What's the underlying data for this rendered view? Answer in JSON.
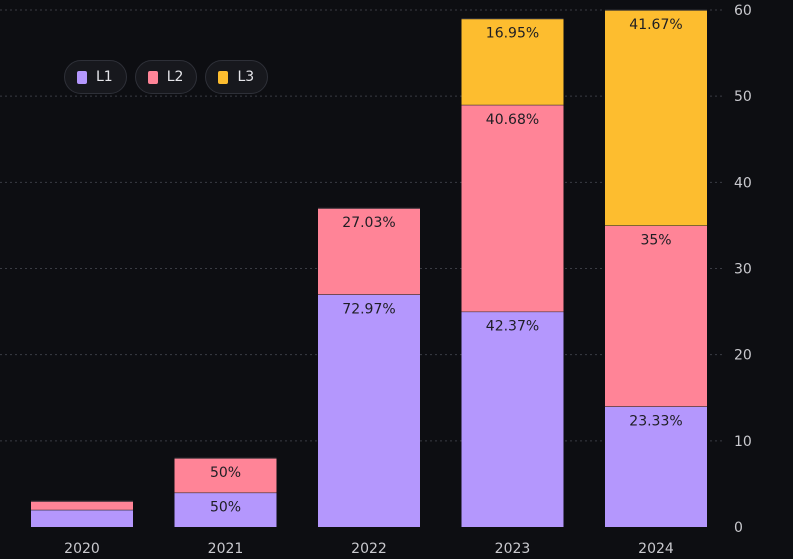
{
  "chart_data": {
    "type": "bar",
    "stacked": true,
    "categories": [
      "2020",
      "2021",
      "2022",
      "2023",
      "2024"
    ],
    "series": [
      {
        "name": "L1",
        "color": "#b497fd",
        "values": [
          2,
          4,
          27,
          25,
          14
        ],
        "labels": [
          "",
          "50%",
          "72.97%",
          "42.37%",
          "23.33%"
        ]
      },
      {
        "name": "L2",
        "color": "#ff8497",
        "values": [
          1,
          4,
          10,
          24,
          21
        ],
        "labels": [
          "",
          "50%",
          "27.03%",
          "40.68%",
          "35%"
        ]
      },
      {
        "name": "L3",
        "color": "#fdbd2f",
        "values": [
          0,
          0,
          0,
          10,
          25
        ],
        "labels": [
          "",
          "",
          "",
          "16.95%",
          "41.67%"
        ]
      }
    ],
    "yticks": [
      "0",
      "10",
      "20",
      "30",
      "40",
      "50",
      "60"
    ],
    "ylim": [
      0,
      60
    ],
    "y_axis_side": "right",
    "grid": true,
    "legend_position": "top-left"
  }
}
